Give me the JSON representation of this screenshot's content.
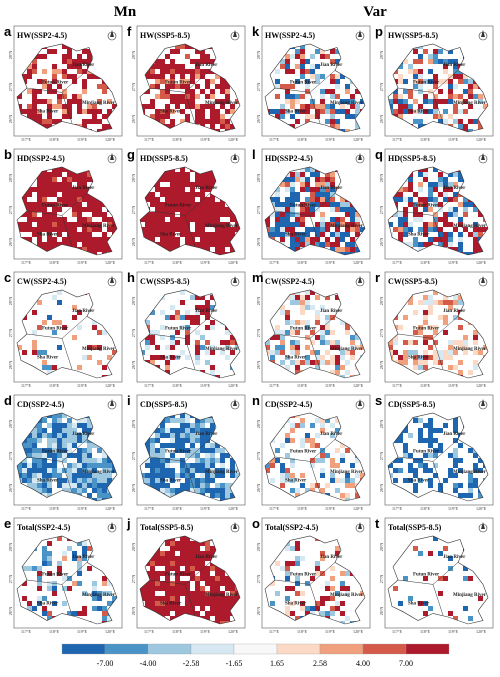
{
  "headers": [
    "Mn",
    "Var"
  ],
  "panels": [
    {
      "letter": "a",
      "label": "HW(SSP2-4.5)"
    },
    {
      "letter": "f",
      "label": "HW(SSP5-8.5)"
    },
    {
      "letter": "k",
      "label": "HW(SSP2-4.5)"
    },
    {
      "letter": "p",
      "label": "HW(SSP5-8.5)"
    },
    {
      "letter": "b",
      "label": "HD(SSP2-4.5)"
    },
    {
      "letter": "g",
      "label": "HD(SSP5-8.5)"
    },
    {
      "letter": "l",
      "label": "HD(SSP2-4.5)"
    },
    {
      "letter": "q",
      "label": "HD(SSP5-8.5)"
    },
    {
      "letter": "c",
      "label": "CW(SSP2-4.5)"
    },
    {
      "letter": "h",
      "label": "CW(SSP5-8.5)"
    },
    {
      "letter": "m",
      "label": "CW(SSP2-4.5)"
    },
    {
      "letter": "r",
      "label": "CW(SSP5-8.5)"
    },
    {
      "letter": "d",
      "label": "CD(SSP2-4.5)"
    },
    {
      "letter": "i",
      "label": "CD(SSP5-8.5)"
    },
    {
      "letter": "n",
      "label": "CD(SSP2-4.5)"
    },
    {
      "letter": "s",
      "label": "CD(SSP5-8.5)"
    },
    {
      "letter": "e",
      "label": "Total(SSP2-4.5)"
    },
    {
      "letter": "j",
      "label": "Total(SSP5-8.5)"
    },
    {
      "letter": "o",
      "label": "Total(SSP2-4.5)"
    },
    {
      "letter": "t",
      "label": "Total(SSP5-8.5)"
    }
  ],
  "rivers": [
    "Jian River",
    "Futun River",
    "Sha River",
    "Minjiang River"
  ],
  "lon_ticks": [
    "117°E",
    "118°E",
    "119°E",
    "120°E"
  ],
  "lat_ticks": [
    "26°N",
    "27°N",
    "28°N"
  ],
  "colorbar": {
    "colors": [
      "#1f66b0",
      "#4a93c6",
      "#9dc8e0",
      "#d6e8f2",
      "#f8f8f8",
      "#fcd9c4",
      "#f1a07e",
      "#d45a4a",
      "#ad1a2c"
    ],
    "ticks": [
      "-7.00",
      "-4.00",
      "-2.58",
      "-1.65",
      "1.65",
      "2.58",
      "4.00",
      "7.00"
    ]
  }
}
